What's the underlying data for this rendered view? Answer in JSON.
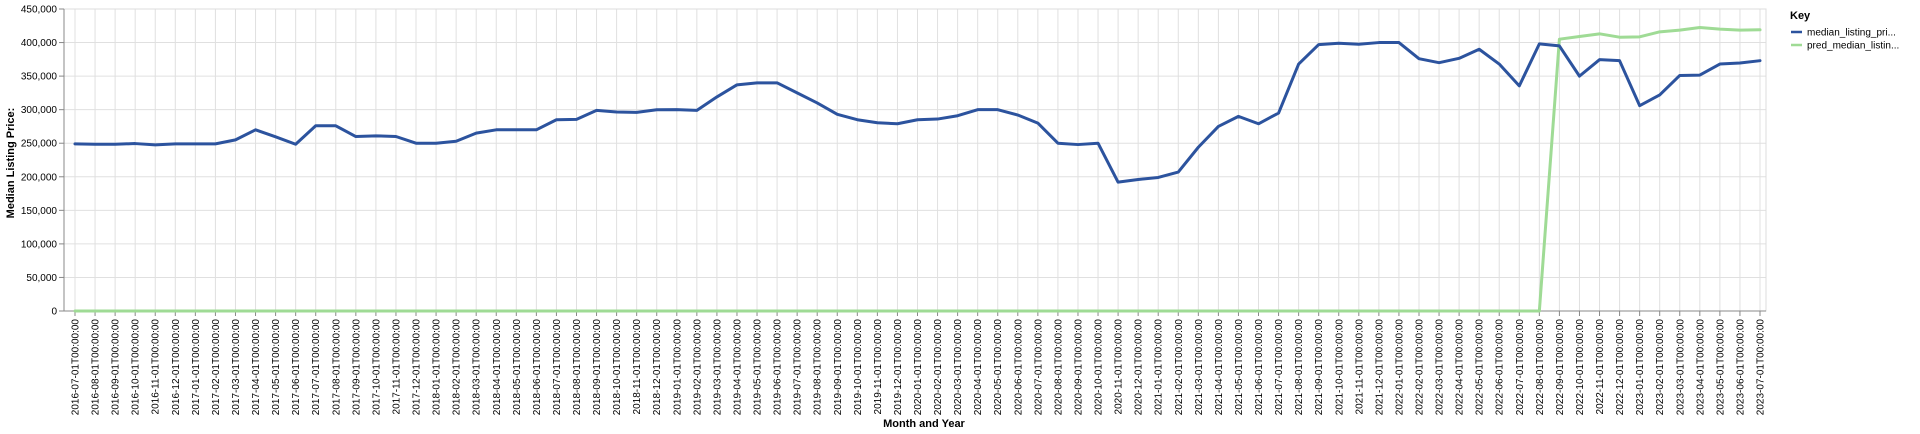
{
  "chart_data": {
    "type": "line",
    "xlabel": "Month and Year",
    "ylabel": "Median Listing Price:",
    "ylim": [
      0,
      450000
    ],
    "yticks": [
      "0",
      "50,000",
      "100,000",
      "150,000",
      "200,000",
      "250,000",
      "300,000",
      "350,000",
      "400,000",
      "450,000"
    ],
    "grid": true,
    "legend_position": "top-right",
    "legend_title": "Key",
    "x": [
      "2016-07-01T00:00:00",
      "2016-08-01T00:00:00",
      "2016-09-01T00:00:00",
      "2016-10-01T00:00:00",
      "2016-11-01T00:00:00",
      "2016-12-01T00:00:00",
      "2017-01-01T00:00:00",
      "2017-02-01T00:00:00",
      "2017-03-01T00:00:00",
      "2017-04-01T00:00:00",
      "2017-05-01T00:00:00",
      "2017-06-01T00:00:00",
      "2017-07-01T00:00:00",
      "2017-08-01T00:00:00",
      "2017-09-01T00:00:00",
      "2017-10-01T00:00:00",
      "2017-11-01T00:00:00",
      "2017-12-01T00:00:00",
      "2018-01-01T00:00:00",
      "2018-02-01T00:00:00",
      "2018-03-01T00:00:00",
      "2018-04-01T00:00:00",
      "2018-05-01T00:00:00",
      "2018-06-01T00:00:00",
      "2018-07-01T00:00:00",
      "2018-08-01T00:00:00",
      "2018-09-01T00:00:00",
      "2018-10-01T00:00:00",
      "2018-11-01T00:00:00",
      "2018-12-01T00:00:00",
      "2019-01-01T00:00:00",
      "2019-02-01T00:00:00",
      "2019-03-01T00:00:00",
      "2019-04-01T00:00:00",
      "2019-05-01T00:00:00",
      "2019-06-01T00:00:00",
      "2019-07-01T00:00:00",
      "2019-08-01T00:00:00",
      "2019-09-01T00:00:00",
      "2019-10-01T00:00:00",
      "2019-11-01T00:00:00",
      "2019-12-01T00:00:00",
      "2020-01-01T00:00:00",
      "2020-02-01T00:00:00",
      "2020-03-01T00:00:00",
      "2020-04-01T00:00:00",
      "2020-05-01T00:00:00",
      "2020-06-01T00:00:00",
      "2020-07-01T00:00:00",
      "2020-08-01T00:00:00",
      "2020-09-01T00:00:00",
      "2020-10-01T00:00:00",
      "2020-11-01T00:00:00",
      "2020-12-01T00:00:00",
      "2021-01-01T00:00:00",
      "2021-02-01T00:00:00",
      "2021-03-01T00:00:00",
      "2021-04-01T00:00:00",
      "2021-05-01T00:00:00",
      "2021-06-01T00:00:00",
      "2021-07-01T00:00:00",
      "2021-08-01T00:00:00",
      "2021-09-01T00:00:00",
      "2021-10-01T00:00:00",
      "2021-11-01T00:00:00",
      "2021-12-01T00:00:00",
      "2022-01-01T00:00:00",
      "2022-02-01T00:00:00",
      "2022-03-01T00:00:00",
      "2022-04-01T00:00:00",
      "2022-05-01T00:00:00",
      "2022-06-01T00:00:00",
      "2022-07-01T00:00:00",
      "2022-08-01T00:00:00",
      "2022-09-01T00:00:00",
      "2022-10-01T00:00:00",
      "2022-11-01T00:00:00",
      "2022-12-01T00:00:00",
      "2023-01-01T00:00:00",
      "2023-02-01T00:00:00",
      "2023-03-01T00:00:00",
      "2023-04-01T00:00:00",
      "2023-05-01T00:00:00",
      "2023-06-01T00:00:00",
      "2023-07-01T00:00:00"
    ],
    "series": [
      {
        "name": "median_listing_pri...",
        "color": "#2c539e",
        "values": [
          249000,
          248500,
          248500,
          249500,
          247500,
          249000,
          249000,
          249000,
          255000,
          270000,
          259500,
          248500,
          276000,
          276000,
          260000,
          261000,
          260000,
          250000,
          250000,
          253000,
          265000,
          270000,
          270000,
          270000,
          285000,
          285500,
          299000,
          296500,
          296000,
          299900,
          300000,
          299000,
          319000,
          337000,
          339900,
          340000,
          325000,
          310000,
          293000,
          285000,
          280500,
          279000,
          285000,
          286000,
          291000,
          300000,
          300000,
          292000,
          280000,
          250000,
          248000,
          250000,
          192000,
          196000,
          199000,
          207000,
          244000,
          275000,
          290000,
          279000,
          295000,
          368000,
          397000,
          399000,
          397500,
          400000,
          400000,
          376000,
          370000,
          376500,
          390000,
          368000,
          335500,
          398000,
          395000,
          350000,
          374500,
          373000,
          306000,
          322000,
          351000,
          351500,
          368000,
          369500,
          373000
        ]
      },
      {
        "name": "pred_median_listin...",
        "color": "#9fdb95",
        "values": [
          0,
          0,
          0,
          0,
          0,
          0,
          0,
          0,
          0,
          0,
          0,
          0,
          0,
          0,
          0,
          0,
          0,
          0,
          0,
          0,
          0,
          0,
          0,
          0,
          0,
          0,
          0,
          0,
          0,
          0,
          0,
          0,
          0,
          0,
          0,
          0,
          0,
          0,
          0,
          0,
          0,
          0,
          0,
          0,
          0,
          0,
          0,
          0,
          0,
          0,
          0,
          0,
          0,
          0,
          0,
          0,
          0,
          0,
          0,
          0,
          0,
          0,
          0,
          0,
          0,
          0,
          0,
          0,
          0,
          0,
          0,
          0,
          0,
          0,
          405000,
          409000,
          413000,
          408000,
          408500,
          416000,
          418500,
          422500,
          420000,
          418500,
          419000
        ]
      }
    ]
  }
}
